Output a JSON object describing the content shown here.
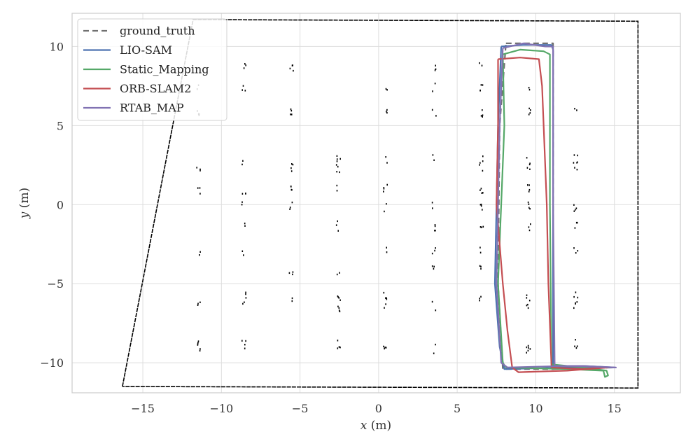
{
  "chart_data": {
    "type": "line",
    "title": "",
    "xlabel": "x",
    "xlabel_unit": " (m)",
    "ylabel": "y",
    "ylabel_unit": " (m)",
    "xlim": [
      -19.5,
      19.2
    ],
    "ylim": [
      -11.9,
      12.1
    ],
    "xticks": [
      -15,
      -10,
      -5,
      0,
      5,
      10,
      15
    ],
    "yticks": [
      -10,
      -5,
      0,
      5,
      10
    ],
    "xtick_labels": [
      "−15",
      "−10",
      "−5",
      "0",
      "5",
      "10",
      "15"
    ],
    "ytick_labels": [
      "−10",
      "−5",
      "0",
      "5",
      "10"
    ],
    "grid": true,
    "legend_position": "top-left",
    "background_map": {
      "color": "#000000",
      "boundary": [
        [
          -16.3,
          -11.5
        ],
        [
          -11.8,
          11.7
        ],
        [
          16.5,
          11.6
        ],
        [
          16.5,
          -11.6
        ],
        [
          -16.3,
          -11.5
        ]
      ],
      "pillar_columns_x": [
        -11.5,
        -8.6,
        -5.6,
        -2.6,
        0.4,
        3.5,
        6.5,
        9.5,
        12.5
      ],
      "pillar_rows_y": [
        8.8,
        7.5,
        5.9,
        2.9,
        2.4,
        1.0,
        -0.1,
        -1.3,
        -2.9,
        -4.1,
        -5.8,
        -6.4,
        -8.8,
        -9.1
      ]
    },
    "series": [
      {
        "name": "ground_truth",
        "color": "#707070",
        "dash": "8,5",
        "points": [
          [
            8.1,
            10.2
          ],
          [
            11.1,
            10.2
          ],
          [
            11.1,
            -10.4
          ],
          [
            15.0,
            -10.3
          ],
          [
            11.1,
            -10.4
          ],
          [
            7.9,
            -10.4
          ],
          [
            7.6,
            -5.0
          ],
          [
            7.7,
            5.0
          ],
          [
            8.1,
            10.2
          ]
        ]
      },
      {
        "name": "LIO-SAM",
        "color": "#4C72B0",
        "dash": "",
        "points": [
          [
            7.8,
            10.0
          ],
          [
            9.2,
            10.1
          ],
          [
            11.0,
            10.1
          ],
          [
            11.1,
            9.8
          ],
          [
            11.1,
            0.0
          ],
          [
            11.1,
            -10.2
          ],
          [
            13.0,
            -10.2
          ],
          [
            15.0,
            -10.3
          ],
          [
            12.0,
            -10.3
          ],
          [
            8.0,
            -10.4
          ],
          [
            7.7,
            -9.0
          ],
          [
            7.4,
            -5.0
          ],
          [
            7.5,
            0.0
          ],
          [
            7.6,
            5.0
          ],
          [
            7.8,
            10.0
          ]
        ]
      },
      {
        "name": "Static_Mapping",
        "color": "#55A868",
        "dash": "",
        "points": [
          [
            7.9,
            9.5
          ],
          [
            9.0,
            9.8
          ],
          [
            10.5,
            9.7
          ],
          [
            10.9,
            9.5
          ],
          [
            10.9,
            0.0
          ],
          [
            11.0,
            -10.1
          ],
          [
            13.0,
            -10.3
          ],
          [
            14.5,
            -10.5
          ],
          [
            14.6,
            -10.8
          ],
          [
            14.4,
            -10.9
          ],
          [
            14.3,
            -10.5
          ],
          [
            12.0,
            -10.4
          ],
          [
            8.1,
            -10.3
          ],
          [
            7.9,
            -10.0
          ],
          [
            7.6,
            -5.0
          ],
          [
            7.8,
            0.0
          ],
          [
            8.0,
            5.0
          ],
          [
            7.9,
            9.5
          ]
        ]
      },
      {
        "name": "ORB-SLAM2",
        "color": "#C44E52",
        "dash": "",
        "points": [
          [
            7.6,
            9.2
          ],
          [
            9.0,
            9.3
          ],
          [
            10.2,
            9.2
          ],
          [
            10.4,
            7.5
          ],
          [
            10.7,
            0.0
          ],
          [
            10.8,
            -5.0
          ],
          [
            11.0,
            -10.3
          ],
          [
            13.0,
            -10.4
          ],
          [
            14.6,
            -10.3
          ],
          [
            12.0,
            -10.5
          ],
          [
            8.9,
            -10.6
          ],
          [
            8.5,
            -10.3
          ],
          [
            8.2,
            -8.0
          ],
          [
            7.9,
            -5.0
          ],
          [
            7.5,
            0.0
          ],
          [
            7.6,
            5.0
          ],
          [
            7.6,
            9.2
          ]
        ]
      },
      {
        "name": "RTAB_MAP",
        "color": "#8172B2",
        "dash": "",
        "points": [
          [
            7.9,
            9.9
          ],
          [
            9.2,
            10.2
          ],
          [
            10.6,
            10.0
          ],
          [
            11.1,
            10.0
          ],
          [
            11.1,
            0.0
          ],
          [
            11.2,
            -10.2
          ],
          [
            13.0,
            -10.2
          ],
          [
            15.1,
            -10.3
          ],
          [
            12.0,
            -10.2
          ],
          [
            8.2,
            -10.3
          ],
          [
            7.8,
            -10.0
          ],
          [
            7.5,
            -5.0
          ],
          [
            7.6,
            0.0
          ],
          [
            7.7,
            5.0
          ],
          [
            7.9,
            9.9
          ]
        ]
      }
    ]
  }
}
